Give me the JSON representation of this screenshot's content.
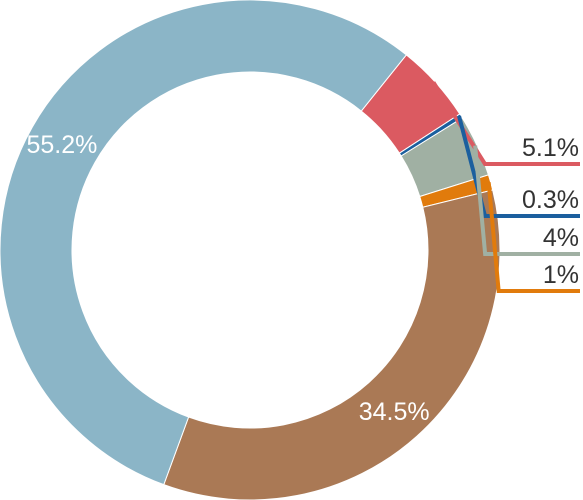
{
  "chart_data": {
    "type": "donut",
    "start_angle_deg": 38.7,
    "direction": "clockwise",
    "slices": [
      {
        "label": "5.1%",
        "value": 5.1,
        "color": "#db5a61",
        "label_position": "outside-right"
      },
      {
        "label": "0.3%",
        "value": 0.3,
        "color": "#1b5f9e",
        "label_position": "outside-right"
      },
      {
        "label": "4%",
        "value": 4.0,
        "color": "#a0b0a3",
        "label_position": "outside-right"
      },
      {
        "label": "1%",
        "value": 1.0,
        "color": "#e17b0c",
        "label_position": "outside-right"
      },
      {
        "label": "34.5%",
        "value": 34.5,
        "color": "#aa7955",
        "label_position": "on-slice"
      },
      {
        "label": "55.2%",
        "value": 55.2,
        "color": "#8bb5c7",
        "label_position": "on-slice"
      }
    ]
  }
}
